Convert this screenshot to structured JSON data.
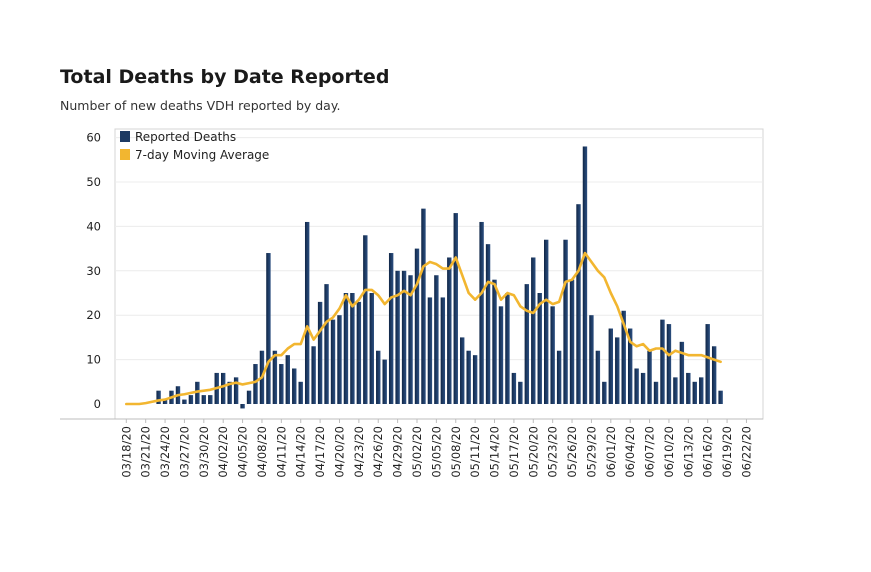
{
  "chart_data": {
    "type": "bar",
    "title": "Total Deaths by Date Reported",
    "subtitle": "Number of new deaths VDH reported by day.",
    "xlabel": "",
    "ylabel": "",
    "ylim": [
      -3,
      62
    ],
    "yticks": [
      0,
      10,
      20,
      30,
      40,
      50,
      60
    ],
    "grid": true,
    "legend_position": "top-left",
    "x_tick_labels": [
      "03/18/20",
      "03/21/20",
      "03/24/20",
      "03/27/20",
      "03/30/20",
      "04/02/20",
      "04/05/20",
      "04/08/20",
      "04/11/20",
      "04/14/20",
      "04/17/20",
      "04/20/20",
      "04/23/20",
      "04/26/20",
      "04/29/20",
      "05/02/20",
      "05/05/20",
      "05/08/20",
      "05/11/20",
      "05/14/20",
      "05/17/20",
      "05/20/20",
      "05/23/20",
      "05/26/20",
      "05/29/20",
      "06/01/20",
      "06/04/20",
      "06/07/20",
      "06/10/20",
      "06/13/20",
      "06/16/20",
      "06/19/20",
      "06/22/20"
    ],
    "start_date": "03/18/20",
    "end_date": "06/22/20",
    "series": [
      {
        "name": "Reported Deaths",
        "type": "bar",
        "color": "#1d3a63",
        "x": [
          "03/18/20",
          "03/19/20",
          "03/20/20",
          "03/21/20",
          "03/22/20",
          "03/23/20",
          "03/24/20",
          "03/25/20",
          "03/26/20",
          "03/27/20",
          "03/28/20",
          "03/29/20",
          "03/30/20",
          "03/31/20",
          "04/01/20",
          "04/02/20",
          "04/03/20",
          "04/04/20",
          "04/05/20",
          "04/06/20",
          "04/07/20",
          "04/08/20",
          "04/09/20",
          "04/10/20",
          "04/11/20",
          "04/12/20",
          "04/13/20",
          "04/14/20",
          "04/15/20",
          "04/16/20",
          "04/17/20",
          "04/18/20",
          "04/19/20",
          "04/20/20",
          "04/21/20",
          "04/22/20",
          "04/23/20",
          "04/24/20",
          "04/25/20",
          "04/26/20",
          "04/27/20",
          "04/28/20",
          "04/29/20",
          "04/30/20",
          "05/01/20",
          "05/02/20",
          "05/03/20",
          "05/04/20",
          "05/05/20",
          "05/06/20",
          "05/07/20",
          "05/08/20",
          "05/09/20",
          "05/10/20",
          "05/11/20",
          "05/12/20",
          "05/13/20",
          "05/14/20",
          "05/15/20",
          "05/16/20",
          "05/17/20",
          "05/18/20",
          "05/19/20",
          "05/20/20",
          "05/21/20",
          "05/22/20",
          "05/23/20",
          "05/24/20",
          "05/25/20",
          "05/26/20",
          "05/27/20",
          "05/28/20",
          "05/29/20",
          "05/30/20",
          "05/31/20",
          "06/01/20",
          "06/02/20",
          "06/03/20",
          "06/04/20",
          "06/05/20",
          "06/06/20",
          "06/07/20",
          "06/08/20",
          "06/09/20",
          "06/10/20",
          "06/11/20",
          "06/12/20",
          "06/13/20",
          "06/14/20",
          "06/15/20",
          "06/16/20",
          "06/17/20",
          "06/18/20",
          "06/19/20"
        ],
        "values": [
          0,
          0,
          0,
          0,
          0,
          3,
          1,
          3,
          4,
          1,
          2,
          5,
          2,
          2,
          7,
          7,
          5,
          6,
          -1,
          3,
          9,
          12,
          34,
          12,
          9,
          11,
          8,
          5,
          41,
          13,
          23,
          27,
          19,
          20,
          25,
          25,
          23,
          38,
          25,
          12,
          10,
          34,
          30,
          30,
          29,
          35,
          44,
          24,
          29,
          24,
          33,
          43,
          15,
          12,
          11,
          41,
          36,
          28,
          22,
          25,
          7,
          5,
          27,
          33,
          25,
          37,
          22,
          12,
          37,
          28,
          45,
          58,
          20,
          12,
          5,
          17,
          15,
          21,
          17,
          8,
          7,
          12,
          5,
          19,
          18,
          6,
          14,
          7,
          5,
          6,
          18,
          13,
          3,
          0
        ]
      },
      {
        "name": "7-day Moving Average",
        "type": "line",
        "color": "#f2b630",
        "x": [
          "03/18/20",
          "03/19/20",
          "03/20/20",
          "03/21/20",
          "03/22/20",
          "03/23/20",
          "03/24/20",
          "03/25/20",
          "03/26/20",
          "03/27/20",
          "03/28/20",
          "03/29/20",
          "03/30/20",
          "03/31/20",
          "04/01/20",
          "04/02/20",
          "04/03/20",
          "04/04/20",
          "04/05/20",
          "04/06/20",
          "04/07/20",
          "04/08/20",
          "04/09/20",
          "04/10/20",
          "04/11/20",
          "04/12/20",
          "04/13/20",
          "04/14/20",
          "04/15/20",
          "04/16/20",
          "04/17/20",
          "04/18/20",
          "04/19/20",
          "04/20/20",
          "04/21/20",
          "04/22/20",
          "04/23/20",
          "04/24/20",
          "04/25/20",
          "04/26/20",
          "04/27/20",
          "04/28/20",
          "04/29/20",
          "04/30/20",
          "05/01/20",
          "05/02/20",
          "05/03/20",
          "05/04/20",
          "05/05/20",
          "05/06/20",
          "05/07/20",
          "05/08/20",
          "05/09/20",
          "05/10/20",
          "05/11/20",
          "05/12/20",
          "05/13/20",
          "05/14/20",
          "05/15/20",
          "05/16/20",
          "05/17/20",
          "05/18/20",
          "05/19/20",
          "05/20/20",
          "05/21/20",
          "05/22/20",
          "05/23/20",
          "05/24/20",
          "05/25/20",
          "05/26/20",
          "05/27/20",
          "05/28/20",
          "05/29/20",
          "05/30/20",
          "05/31/20",
          "06/01/20",
          "06/02/20",
          "06/03/20",
          "06/04/20",
          "06/05/20",
          "06/06/20",
          "06/07/20",
          "06/08/20",
          "06/09/20",
          "06/10/20",
          "06/11/20",
          "06/12/20",
          "06/13/20",
          "06/14/20",
          "06/15/20",
          "06/16/20",
          "06/17/20",
          "06/18/20"
        ],
        "values": [
          0,
          0,
          0,
          0.2,
          0.5,
          0.8,
          1,
          1.5,
          2,
          2.2,
          2.5,
          2.8,
          3,
          3.2,
          3.6,
          4,
          4.5,
          4.8,
          4.4,
          4.7,
          5,
          6,
          9.5,
          11,
          11,
          12.5,
          13.5,
          13.5,
          17.5,
          14.5,
          16.5,
          18.5,
          19.5,
          21.5,
          24.5,
          22,
          23.5,
          25.7,
          25.7,
          24.5,
          22.5,
          24,
          24.5,
          25.5,
          24.5,
          27,
          31,
          32,
          31.5,
          30.5,
          30.5,
          33,
          29,
          25,
          23.5,
          25,
          27.5,
          27,
          23.5,
          25,
          24.5,
          22,
          21,
          20.5,
          22.5,
          23.5,
          22.5,
          23,
          27.5,
          28,
          30,
          34,
          32,
          30,
          28.5,
          25,
          22,
          18,
          14,
          13,
          13.5,
          12,
          12.5,
          12.5,
          11,
          12,
          11.5,
          11,
          11,
          11,
          10.5,
          10,
          9.5
        ]
      }
    ]
  }
}
